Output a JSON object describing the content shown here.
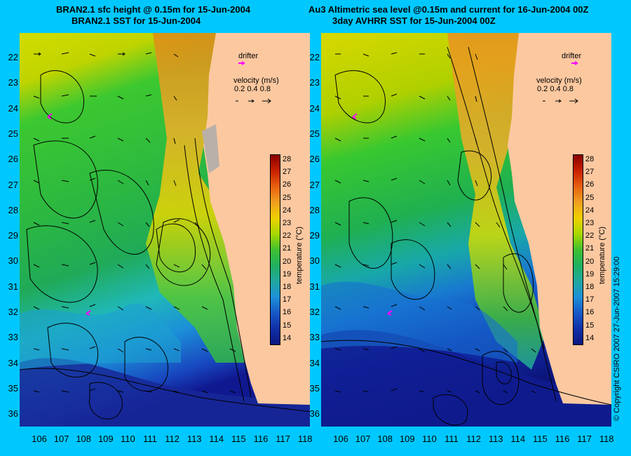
{
  "left_panel": {
    "title_line1": "BRAN2.1 sfc height @ 0.15m for 15-Jun-2004",
    "title_line2": "BRAN2.1 SST for 15-Jun-2004"
  },
  "right_panel": {
    "title_line1": "Au3 Altimetric sea level  @0.15m and current for 16-Jun-2004 00Z",
    "title_line2": "3day AVHRR SST for 15-Jun-2004 00Z"
  },
  "legend": {
    "drifter_label": "drifter",
    "velocity_label": "velocity (m/s)",
    "velocity_values": "0.2 0.4 0.8",
    "colorbar_title": "temperature (°C)",
    "colorbar_ticks": [
      "28",
      "27",
      "26",
      "25",
      "24",
      "23",
      "22",
      "21",
      "20",
      "19",
      "18",
      "17",
      "16",
      "15",
      "14"
    ]
  },
  "axes": {
    "lat_labels": [
      "22",
      "23",
      "24",
      "25",
      "26",
      "27",
      "28",
      "29",
      "30",
      "31",
      "32",
      "33",
      "34",
      "35",
      "36"
    ],
    "lon_labels": [
      "106",
      "107",
      "108",
      "109",
      "110",
      "111",
      "112",
      "113",
      "114",
      "115",
      "116",
      "117",
      "118"
    ]
  },
  "copyright": "© Copyright CSIRO 2007   27-Jun-2007 15:29:00",
  "colors": {
    "background": "#00c8ff",
    "land": "#fcc8a0",
    "drifter": "#ff00ff"
  }
}
